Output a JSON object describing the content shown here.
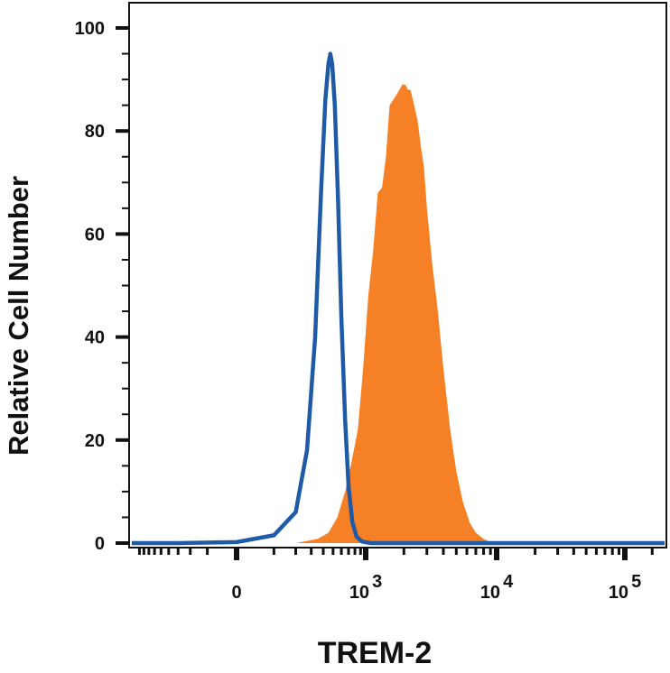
{
  "chart_data": {
    "type": "area",
    "title": "",
    "xlabel": "TREM-2",
    "ylabel": "Relative Cell Number",
    "x_scale": "biexponential",
    "x_tick_labels": [
      {
        "base": "0",
        "exp": "",
        "value": 0
      },
      {
        "base": "10",
        "exp": "3",
        "value": 1000
      },
      {
        "base": "10",
        "exp": "4",
        "value": 10000
      },
      {
        "base": "10",
        "exp": "5",
        "value": 100000
      }
    ],
    "y_ticks": [
      0,
      20,
      40,
      60,
      80,
      100
    ],
    "ylim": [
      0,
      100
    ],
    "grid": false,
    "legend": "none",
    "series": [
      {
        "style": "outline",
        "color": "#1f5aa6",
        "points": [
          [
            -300,
            0
          ],
          [
            0,
            0.2
          ],
          [
            100,
            1.5
          ],
          [
            200,
            6
          ],
          [
            270,
            18
          ],
          [
            330,
            40
          ],
          [
            380,
            68
          ],
          [
            420,
            86
          ],
          [
            450,
            93
          ],
          [
            470,
            95
          ],
          [
            490,
            93
          ],
          [
            520,
            85
          ],
          [
            560,
            66
          ],
          [
            600,
            44
          ],
          [
            650,
            24
          ],
          [
            700,
            11
          ],
          [
            760,
            4
          ],
          [
            830,
            1.2
          ],
          [
            930,
            0.3
          ],
          [
            1100,
            0
          ]
        ]
      },
      {
        "style": "filled",
        "color": "#f58025",
        "points": [
          [
            200,
            0
          ],
          [
            350,
            0.8
          ],
          [
            450,
            2
          ],
          [
            550,
            5
          ],
          [
            650,
            10
          ],
          [
            750,
            16
          ],
          [
            850,
            22
          ],
          [
            950,
            34
          ],
          [
            1050,
            48
          ],
          [
            1150,
            57
          ],
          [
            1250,
            68
          ],
          [
            1350,
            69
          ],
          [
            1450,
            75
          ],
          [
            1550,
            85
          ],
          [
            1650,
            86
          ],
          [
            1750,
            87
          ],
          [
            1850,
            88
          ],
          [
            1950,
            89
          ],
          [
            2050,
            89
          ],
          [
            2150,
            88
          ],
          [
            2250,
            88
          ],
          [
            2400,
            85
          ],
          [
            2550,
            82
          ],
          [
            2700,
            77
          ],
          [
            2850,
            73
          ],
          [
            3000,
            65
          ],
          [
            3300,
            54
          ],
          [
            3600,
            46
          ],
          [
            4000,
            34
          ],
          [
            4500,
            22
          ],
          [
            5000,
            14
          ],
          [
            5600,
            8
          ],
          [
            6300,
            4
          ],
          [
            7000,
            2
          ],
          [
            8000,
            0.8
          ],
          [
            9000,
            0.2
          ],
          [
            10000,
            0
          ]
        ]
      }
    ]
  }
}
